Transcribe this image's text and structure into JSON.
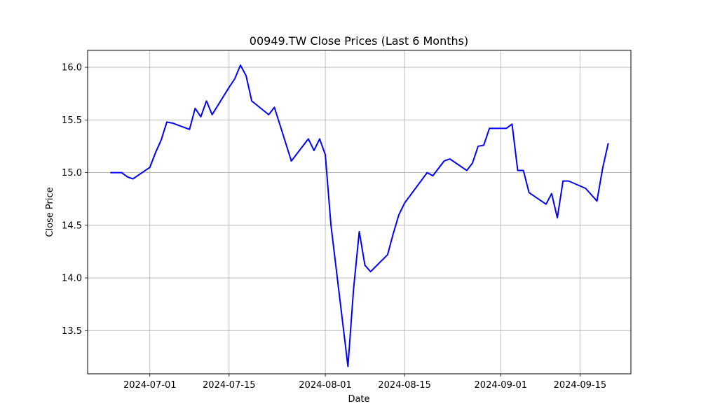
{
  "chart_data": {
    "type": "line",
    "title": "00949.TW Close Prices (Last 6 Months)",
    "xlabel": "Date",
    "ylabel": "Close Price",
    "x_tick_labels": [
      "2024-07-01",
      "2024-07-15",
      "2024-08-01",
      "2024-08-15",
      "2024-09-01",
      "2024-09-15"
    ],
    "y_tick_labels": [
      "13.5",
      "14.0",
      "14.5",
      "15.0",
      "15.5",
      "16.0"
    ],
    "xlim": [
      "2024-06-20",
      "2024-09-24"
    ],
    "ylim": [
      13.09,
      16.16
    ],
    "grid": true,
    "line_color": "#0000ff",
    "series": [
      {
        "x": [
          "2024-06-24",
          "2024-06-26",
          "2024-06-27",
          "2024-06-28",
          "2024-07-01",
          "2024-07-02",
          "2024-07-03",
          "2024-07-04",
          "2024-07-05",
          "2024-07-08",
          "2024-07-09",
          "2024-07-10",
          "2024-07-11",
          "2024-07-12",
          "2024-07-15",
          "2024-07-16",
          "2024-07-17",
          "2024-07-18",
          "2024-07-19",
          "2024-07-22",
          "2024-07-23",
          "2024-07-26",
          "2024-07-29",
          "2024-07-30",
          "2024-07-31",
          "2024-08-01",
          "2024-08-02",
          "2024-08-05",
          "2024-08-06",
          "2024-08-07",
          "2024-08-08",
          "2024-08-09",
          "2024-08-12",
          "2024-08-13",
          "2024-08-14",
          "2024-08-15",
          "2024-08-19",
          "2024-08-20",
          "2024-08-22",
          "2024-08-23",
          "2024-08-26",
          "2024-08-27",
          "2024-08-28",
          "2024-08-29",
          "2024-08-30",
          "2024-09-02",
          "2024-09-03",
          "2024-09-04",
          "2024-09-05",
          "2024-09-06",
          "2024-09-09",
          "2024-09-10",
          "2024-09-11",
          "2024-09-12",
          "2024-09-13",
          "2024-09-16",
          "2024-09-18",
          "2024-09-19",
          "2024-09-20"
        ],
        "values": [
          15.0,
          15.0,
          14.96,
          14.94,
          15.05,
          15.19,
          15.31,
          15.48,
          15.47,
          15.41,
          15.61,
          15.53,
          15.68,
          15.55,
          15.81,
          15.89,
          16.02,
          15.92,
          15.68,
          15.55,
          15.62,
          15.11,
          15.32,
          15.21,
          15.32,
          15.17,
          14.5,
          13.16,
          13.9,
          14.44,
          14.12,
          14.06,
          14.22,
          14.42,
          14.6,
          14.71,
          15.0,
          14.97,
          15.11,
          15.13,
          15.02,
          15.09,
          15.25,
          15.26,
          15.42,
          15.42,
          15.46,
          15.02,
          15.02,
          14.81,
          14.7,
          14.8,
          14.57,
          14.92,
          14.92,
          14.85,
          14.73,
          15.04,
          15.28
        ]
      }
    ]
  }
}
